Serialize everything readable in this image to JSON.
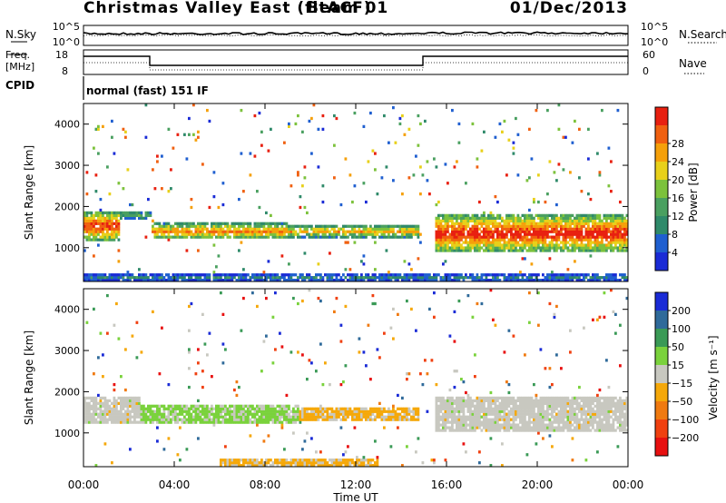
{
  "header": {
    "title": "Christmas Valley East (fitACF)",
    "beam": "Beam 01",
    "date": "01/Dec/2013"
  },
  "panels": {
    "nsky": {
      "label": "N.Sky",
      "tick_top": "10^5",
      "tick_bottom": "10^0"
    },
    "nsearch": {
      "label": "N.Search",
      "tick_top": "10^5",
      "tick_bottom": "10^0"
    },
    "freq": {
      "label_line1": "Freq.",
      "label_line2": "[MHz]",
      "tick_top": "18",
      "tick_bottom": "8"
    },
    "nave": {
      "label": "Nave",
      "tick_top": "60",
      "tick_bottom": "0"
    },
    "cpid": {
      "label": "CPID",
      "value": "normal (fast) 151 IF"
    }
  },
  "colors": {
    "power": [
      "#1a2bd6",
      "#1f5fd0",
      "#2f8a6a",
      "#4aa060",
      "#7cc23c",
      "#e8d01a",
      "#f5a00a",
      "#f06010",
      "#e82010"
    ],
    "velocity": [
      "#1a2bd6",
      "#2f6a9a",
      "#3a9a56",
      "#7ad23c",
      "#c8c8c0",
      "#f5a80a",
      "#f07a10",
      "#f04010",
      "#e81010"
    ]
  },
  "chart_data": [
    {
      "type": "heatmap",
      "ylabel": "Slant Range [km]",
      "xlabel": "",
      "x_ticks": [
        "00:00",
        "04:00",
        "08:00",
        "12:00",
        "16:00",
        "20:00",
        "00:00"
      ],
      "y_ticks": [
        1000,
        2000,
        3000,
        4000
      ],
      "xlim_hours": [
        0,
        24
      ],
      "ylim": [
        180,
        4500
      ],
      "colorbar": {
        "label": "Power [dB]",
        "ticks": [
          "4",
          "8",
          "12",
          "16",
          "20",
          "24",
          "28"
        ],
        "range": [
          0,
          30
        ]
      },
      "features": [
        {
          "type": "band",
          "h": [
            0,
            1.6
          ],
          "lo": 1150,
          "hi": 1900,
          "peak": 28
        },
        {
          "type": "band",
          "h": [
            1.5,
            3.0
          ],
          "lo": 1700,
          "hi": 1900,
          "peak": 14
        },
        {
          "type": "band",
          "h": [
            3.0,
            9.0
          ],
          "lo": 1200,
          "hi": 1600,
          "peak": 24
        },
        {
          "type": "band",
          "h": [
            9.0,
            14.8
          ],
          "lo": 1250,
          "hi": 1550,
          "peak": 22
        },
        {
          "type": "band",
          "h": [
            15.5,
            24
          ],
          "lo": 900,
          "hi": 1800,
          "peak": 30
        },
        {
          "type": "band",
          "h": [
            0,
            24
          ],
          "lo": 200,
          "hi": 350,
          "peak": 8
        }
      ]
    },
    {
      "type": "heatmap",
      "ylabel": "Slant Range [km]",
      "xlabel": "Time UT",
      "x_ticks": [
        "00:00",
        "04:00",
        "08:00",
        "12:00",
        "16:00",
        "20:00",
        "00:00"
      ],
      "y_ticks": [
        1000,
        2000,
        3000,
        4000
      ],
      "xlim_hours": [
        0,
        24
      ],
      "ylim": [
        180,
        4500
      ],
      "colorbar": {
        "label": "Velocity [m s⁻¹]",
        "ticks": [
          "200",
          "100",
          "50",
          "15",
          "−15",
          "−50",
          "−100",
          "−200"
        ],
        "range": [
          -250,
          250
        ]
      },
      "features": [
        {
          "type": "band",
          "h": [
            0,
            2.5
          ],
          "lo": 1200,
          "hi": 1900,
          "vel": 0
        },
        {
          "type": "band",
          "h": [
            2.5,
            9.5
          ],
          "lo": 1250,
          "hi": 1700,
          "vel": 40
        },
        {
          "type": "band",
          "h": [
            9.5,
            14.8
          ],
          "lo": 1300,
          "hi": 1600,
          "vel": -40
        },
        {
          "type": "band",
          "h": [
            15.5,
            24
          ],
          "lo": 1000,
          "hi": 1900,
          "vel": 0
        },
        {
          "type": "band",
          "h": [
            6,
            13
          ],
          "lo": 200,
          "hi": 380,
          "vel": -40
        }
      ]
    }
  ]
}
